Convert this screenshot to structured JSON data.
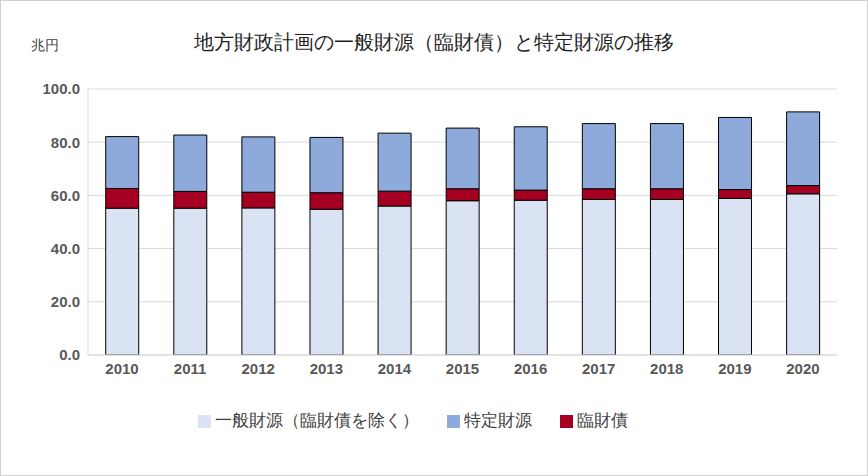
{
  "chart_data": {
    "type": "bar",
    "title": "地方財政計画の一般財源（臨財債）と特定財源の推移",
    "y_label": "兆円",
    "categories": [
      "2010",
      "2011",
      "2012",
      "2013",
      "2014",
      "2015",
      "2016",
      "2017",
      "2018",
      "2019",
      "2020"
    ],
    "series": [
      {
        "name": "一般財源（臨財債を除く）",
        "color": "#dae3f3",
        "values": [
          55.2,
          55.2,
          55.3,
          54.8,
          56.0,
          58.0,
          58.2,
          58.5,
          58.5,
          58.9,
          60.6
        ]
      },
      {
        "name": "臨財債",
        "color": "#a50021",
        "values": [
          7.4,
          6.3,
          5.9,
          6.2,
          5.6,
          4.5,
          3.8,
          4.0,
          4.0,
          3.3,
          3.1
        ]
      },
      {
        "name": "特定財源",
        "color": "#8eaadb",
        "values": [
          19.5,
          21.2,
          20.8,
          20.8,
          21.8,
          22.8,
          23.8,
          24.5,
          24.5,
          27.1,
          27.7
        ]
      }
    ],
    "ylim": [
      0,
      100
    ],
    "yticks": [
      {
        "value": 0,
        "label": "0.0"
      },
      {
        "value": 20,
        "label": "20.0"
      },
      {
        "value": 40,
        "label": "40.0"
      },
      {
        "value": 60,
        "label": "60.0"
      },
      {
        "value": 80,
        "label": "80.0"
      },
      {
        "value": 100,
        "label": "100.0"
      }
    ],
    "grid": true,
    "stacked": true,
    "legend": "bottom"
  }
}
